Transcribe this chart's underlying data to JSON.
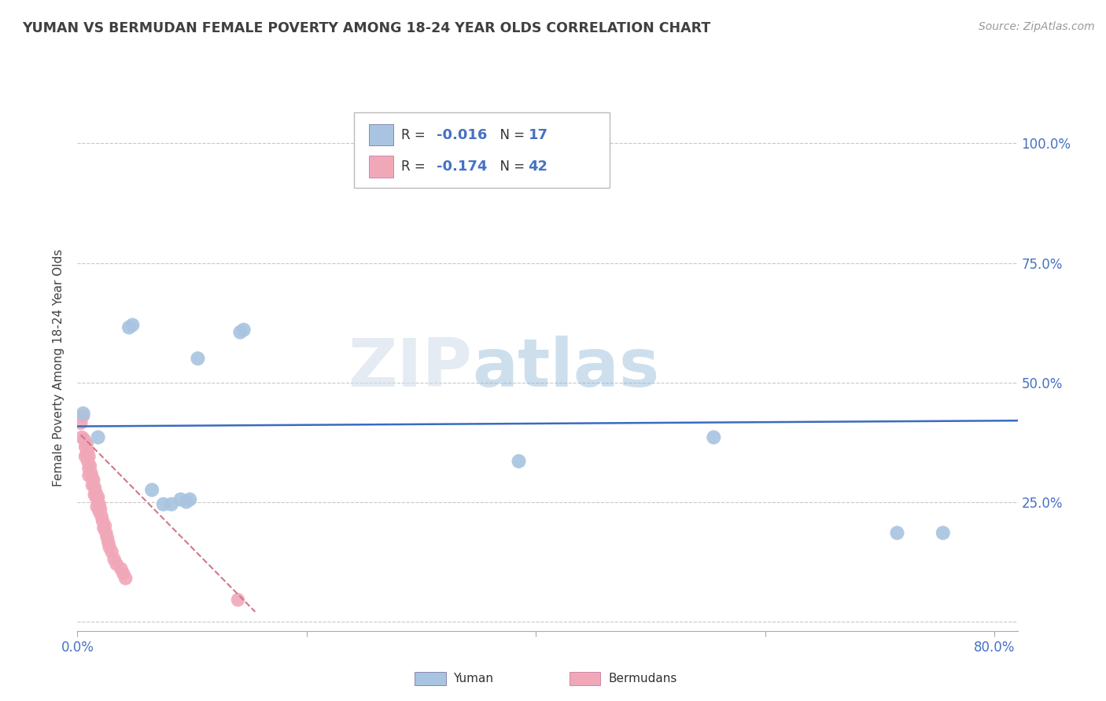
{
  "title": "YUMAN VS BERMUDAN FEMALE POVERTY AMONG 18-24 YEAR OLDS CORRELATION CHART",
  "source_text": "Source: ZipAtlas.com",
  "ylabel": "Female Poverty Among 18-24 Year Olds",
  "xlim": [
    0.0,
    0.82
  ],
  "ylim": [
    -0.02,
    1.08
  ],
  "xticks": [
    0.0,
    0.2,
    0.4,
    0.6,
    0.8
  ],
  "xticklabels": [
    "0.0%",
    "",
    "",
    "",
    "80.0%"
  ],
  "yticks": [
    0.0,
    0.25,
    0.5,
    0.75,
    1.0
  ],
  "yticklabels": [
    "",
    "25.0%",
    "50.0%",
    "75.0%",
    "100.0%"
  ],
  "yuman_R": "-0.016",
  "yuman_N": "17",
  "bermudan_R": "-0.174",
  "bermudan_N": "42",
  "watermark_zip": "ZIP",
  "watermark_atlas": "atlas",
  "yuman_color": "#a8c4e0",
  "bermudan_color": "#f0a8b8",
  "trendline_yuman_color": "#3a6bbf",
  "trendline_bermudan_color": "#d07888",
  "grid_color": "#c8c8c8",
  "background_color": "#ffffff",
  "title_color": "#404040",
  "tick_label_color": "#4472c4",
  "yuman_x": [
    0.005,
    0.018,
    0.045,
    0.048,
    0.065,
    0.075,
    0.082,
    0.09,
    0.095,
    0.098,
    0.105,
    0.142,
    0.145,
    0.385,
    0.555,
    0.715,
    0.755
  ],
  "yuman_y": [
    0.435,
    0.385,
    0.615,
    0.62,
    0.275,
    0.245,
    0.245,
    0.255,
    0.25,
    0.255,
    0.55,
    0.605,
    0.61,
    0.335,
    0.385,
    0.185,
    0.185
  ],
  "bermudan_x": [
    0.003,
    0.004,
    0.005,
    0.006,
    0.007,
    0.007,
    0.008,
    0.008,
    0.009,
    0.009,
    0.01,
    0.01,
    0.01,
    0.011,
    0.012,
    0.013,
    0.013,
    0.014,
    0.015,
    0.015,
    0.016,
    0.017,
    0.017,
    0.018,
    0.019,
    0.019,
    0.02,
    0.021,
    0.022,
    0.023,
    0.024,
    0.025,
    0.026,
    0.027,
    0.028,
    0.03,
    0.032,
    0.034,
    0.038,
    0.04,
    0.042,
    0.14
  ],
  "bermudan_y": [
    0.415,
    0.385,
    0.43,
    0.38,
    0.365,
    0.345,
    0.37,
    0.35,
    0.355,
    0.335,
    0.345,
    0.32,
    0.305,
    0.325,
    0.31,
    0.3,
    0.285,
    0.295,
    0.28,
    0.265,
    0.27,
    0.255,
    0.24,
    0.26,
    0.245,
    0.23,
    0.235,
    0.22,
    0.21,
    0.195,
    0.2,
    0.185,
    0.175,
    0.165,
    0.155,
    0.145,
    0.13,
    0.12,
    0.11,
    0.1,
    0.09,
    0.045
  ],
  "trendline_yuman_x0": 0.0,
  "trendline_yuman_x1": 0.82,
  "trendline_yuman_y0": 0.408,
  "trendline_yuman_y1": 0.42,
  "trendline_bermudan_x0": 0.003,
  "trendline_bermudan_x1": 0.155,
  "trendline_bermudan_y0": 0.39,
  "trendline_bermudan_y1": 0.02
}
